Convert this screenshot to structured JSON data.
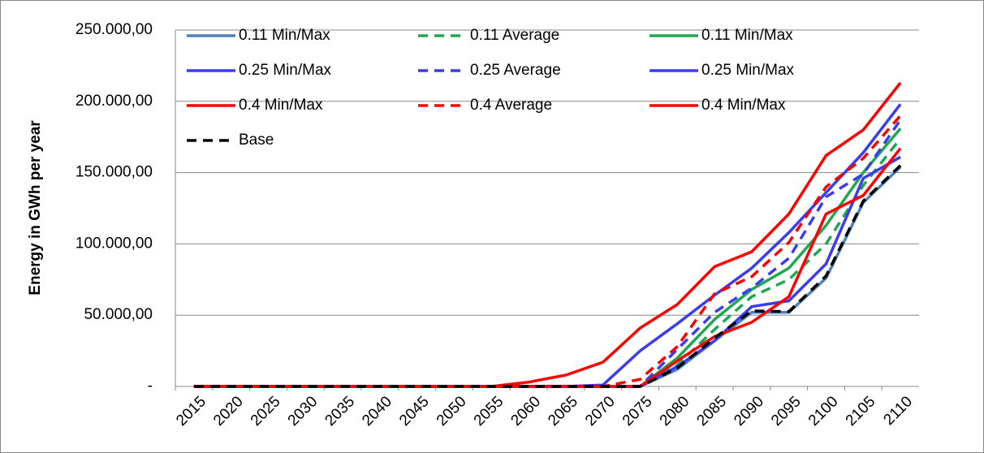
{
  "chart_data": {
    "type": "line",
    "y_label": "Energy in GWh per year",
    "categories": [
      "2015",
      "2020",
      "2025",
      "2030",
      "2035",
      "2040",
      "2045",
      "2050",
      "2055",
      "2060",
      "2065",
      "2070",
      "2075",
      "2080",
      "2085",
      "2090",
      "2095",
      "2100",
      "2105",
      "2110"
    ],
    "ylim": [
      0,
      250000
    ],
    "yticks": [
      {
        "value": 0,
        "label": "-"
      },
      {
        "value": 50000,
        "label": "50.000,00"
      },
      {
        "value": 100000,
        "label": "100.000,00"
      },
      {
        "value": 150000,
        "label": "150.000,00"
      },
      {
        "value": 200000,
        "label": "200.000,00"
      },
      {
        "value": 250000,
        "label": "250.000,00"
      }
    ],
    "grid": true,
    "series": [
      {
        "name": "0.11 Min/Max",
        "color": "#4f81bd",
        "dash": false,
        "values": [
          0,
          0,
          0,
          0,
          0,
          0,
          0,
          0,
          0,
          0,
          0,
          0,
          0,
          12000,
          32000,
          52000,
          52000,
          76000,
          129000,
          154000
        ]
      },
      {
        "name": "0.11 Average",
        "color": "#1fa84f",
        "dash": true,
        "values": [
          0,
          0,
          0,
          0,
          0,
          0,
          0,
          0,
          0,
          0,
          0,
          0,
          0,
          15000,
          40000,
          63000,
          75000,
          100000,
          141000,
          174000
        ]
      },
      {
        "name": "0.11 Min/Max",
        "color": "#1fa84f",
        "dash": false,
        "values": [
          0,
          0,
          0,
          0,
          0,
          0,
          0,
          0,
          0,
          0,
          0,
          0,
          0,
          20000,
          47000,
          68000,
          83000,
          113000,
          150000,
          181000
        ]
      },
      {
        "name": "0.25 Min/Max",
        "color": "#3b3bef",
        "dash": false,
        "values": [
          0,
          0,
          0,
          0,
          0,
          0,
          0,
          0,
          0,
          0,
          0,
          0,
          0,
          14000,
          32000,
          56000,
          60000,
          86000,
          146000,
          161000
        ]
      },
      {
        "name": "0.25 Average",
        "color": "#3b3bef",
        "dash": true,
        "values": [
          0,
          0,
          0,
          0,
          0,
          0,
          0,
          0,
          0,
          0,
          0,
          0,
          0,
          26000,
          52000,
          69000,
          90000,
          133000,
          149000,
          187000
        ]
      },
      {
        "name": "0.25 Min/Max",
        "color": "#3b3bef",
        "dash": false,
        "values": [
          0,
          0,
          0,
          0,
          0,
          0,
          0,
          0,
          0,
          0,
          0,
          1000,
          25000,
          44000,
          64000,
          83000,
          108000,
          136000,
          164000,
          198000
        ]
      },
      {
        "name": "0.4 Min/Max",
        "color": "#ff0000",
        "dash": false,
        "values": [
          0,
          0,
          0,
          0,
          0,
          0,
          0,
          0,
          0,
          0,
          0,
          0,
          0,
          18000,
          35000,
          45000,
          63000,
          121000,
          134000,
          167000
        ]
      },
      {
        "name": "0.4 Average",
        "color": "#ff0000",
        "dash": true,
        "values": [
          0,
          0,
          0,
          0,
          0,
          0,
          0,
          0,
          0,
          0,
          0,
          0,
          5000,
          28000,
          65000,
          77000,
          101000,
          140000,
          160000,
          190000
        ]
      },
      {
        "name": "0.4 Min/Max",
        "color": "#ff0000",
        "dash": false,
        "values": [
          0,
          0,
          0,
          0,
          0,
          0,
          0,
          0,
          0,
          3000,
          8000,
          17000,
          41000,
          57500,
          84000,
          94500,
          121000,
          162000,
          180000,
          213000
        ]
      },
      {
        "name": "Base",
        "color": "#000000",
        "dash": true,
        "values": [
          0,
          0,
          0,
          0,
          0,
          0,
          0,
          0,
          0,
          0,
          0,
          0,
          0,
          13000,
          34000,
          53000,
          52500,
          77500,
          130000,
          155000
        ]
      }
    ]
  }
}
